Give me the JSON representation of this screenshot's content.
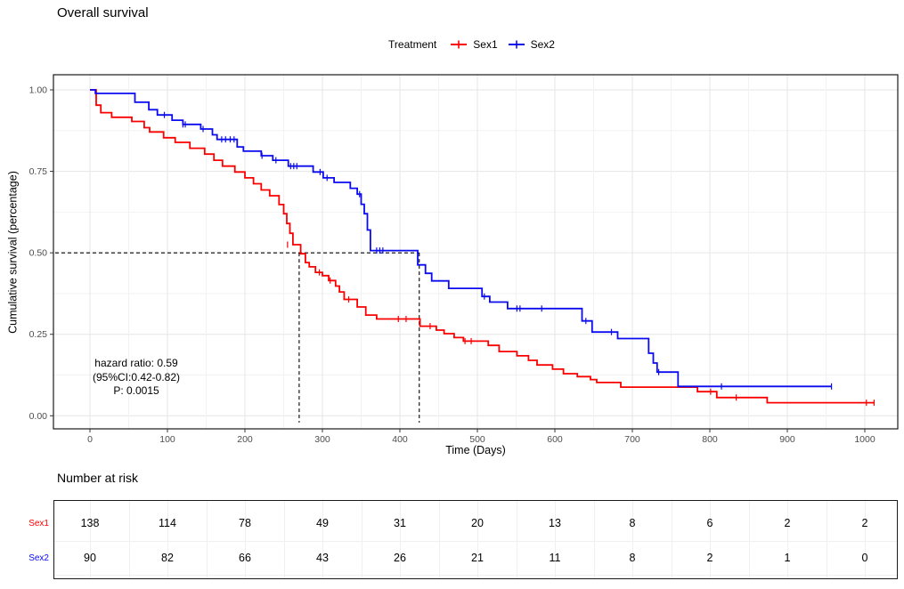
{
  "title": "Overall survival",
  "legend": {
    "title": "Treatment",
    "items": [
      {
        "label": "Sex1",
        "color": "#fa0000"
      },
      {
        "label": "Sex2",
        "color": "#0b0bf0"
      }
    ]
  },
  "annotation": {
    "lines": [
      "hazard ratio: 0.59",
      "(95%CI:0.42-0.82)",
      "P: 0.0015"
    ]
  },
  "chart_data": {
    "type": "line",
    "subtype": "kaplan-meier-step",
    "title": "Overall survival",
    "xlabel": "Time (Days)",
    "ylabel": "Cumulative survival (percentage)",
    "xlim": [
      0,
      1042
    ],
    "ylim": [
      0,
      1.0
    ],
    "xticks": [
      {
        "v": 0,
        "label": "0"
      },
      {
        "v": 100,
        "label": "100"
      },
      {
        "v": 200,
        "label": "200"
      },
      {
        "v": 300,
        "label": "300"
      },
      {
        "v": 400,
        "label": "400"
      },
      {
        "v": 500,
        "label": "500"
      },
      {
        "v": 600,
        "label": "600"
      },
      {
        "v": 700,
        "label": "700"
      },
      {
        "v": 800,
        "label": "800"
      },
      {
        "v": 900,
        "label": "900"
      },
      {
        "v": 1000,
        "label": "1000"
      }
    ],
    "yticks": [
      {
        "v": 0,
        "label": "0.00"
      },
      {
        "v": 0.25,
        "label": "0.25"
      },
      {
        "v": 0.5,
        "label": "0.50"
      },
      {
        "v": 0.75,
        "label": "0.75"
      },
      {
        "v": 1.0,
        "label": "1.00"
      }
    ],
    "grid": {
      "x_minor_step_days": 50,
      "y_minor_step": 0.125
    },
    "legend_position": "top",
    "median_survival": {
      "level": 0.5,
      "times": [
        270,
        425
      ]
    },
    "series": [
      {
        "name": "Sex1",
        "color": "#fa0000",
        "steps": [
          [
            0,
            1.0
          ],
          [
            8,
            0.953
          ],
          [
            14,
            0.93
          ],
          [
            28,
            0.916
          ],
          [
            54,
            0.903
          ],
          [
            70,
            0.884
          ],
          [
            77,
            0.871
          ],
          [
            95,
            0.853
          ],
          [
            110,
            0.839
          ],
          [
            129,
            0.821
          ],
          [
            148,
            0.803
          ],
          [
            160,
            0.784
          ],
          [
            171,
            0.766
          ],
          [
            187,
            0.748
          ],
          [
            200,
            0.73
          ],
          [
            211,
            0.712
          ],
          [
            221,
            0.693
          ],
          [
            232,
            0.675
          ],
          [
            244,
            0.648
          ],
          [
            250,
            0.62
          ],
          [
            254,
            0.59
          ],
          [
            258,
            0.56
          ],
          [
            262,
            0.525
          ],
          [
            272,
            0.497
          ],
          [
            278,
            0.47
          ],
          [
            283,
            0.457
          ],
          [
            291,
            0.44
          ],
          [
            300,
            0.43
          ],
          [
            308,
            0.415
          ],
          [
            317,
            0.398
          ],
          [
            322,
            0.38
          ],
          [
            328,
            0.357
          ],
          [
            345,
            0.334
          ],
          [
            356,
            0.309
          ],
          [
            370,
            0.297
          ],
          [
            426,
            0.275
          ],
          [
            447,
            0.263
          ],
          [
            457,
            0.252
          ],
          [
            470,
            0.24
          ],
          [
            482,
            0.229
          ],
          [
            514,
            0.216
          ],
          [
            528,
            0.197
          ],
          [
            551,
            0.184
          ],
          [
            566,
            0.17
          ],
          [
            577,
            0.156
          ],
          [
            597,
            0.143
          ],
          [
            611,
            0.129
          ],
          [
            629,
            0.12
          ],
          [
            646,
            0.111
          ],
          [
            654,
            0.102
          ],
          [
            685,
            0.088
          ],
          [
            784,
            0.074
          ],
          [
            809,
            0.056
          ],
          [
            874,
            0.04
          ],
          [
            1012,
            0.04
          ]
        ],
        "censors": [
          [
            255,
            0.525
          ],
          [
            296,
            0.44
          ],
          [
            310,
            0.415
          ],
          [
            334,
            0.357
          ],
          [
            398,
            0.297
          ],
          [
            408,
            0.297
          ],
          [
            439,
            0.275
          ],
          [
            484,
            0.229
          ],
          [
            492,
            0.229
          ],
          [
            801,
            0.074
          ],
          [
            834,
            0.056
          ],
          [
            1002,
            0.04
          ],
          [
            1012,
            0.04
          ]
        ]
      },
      {
        "name": "Sex2",
        "color": "#0b0bf0",
        "steps": [
          [
            0,
            1.0
          ],
          [
            7,
            0.989
          ],
          [
            58,
            0.962
          ],
          [
            76,
            0.939
          ],
          [
            87,
            0.923
          ],
          [
            106,
            0.907
          ],
          [
            120,
            0.894
          ],
          [
            143,
            0.88
          ],
          [
            158,
            0.862
          ],
          [
            164,
            0.848
          ],
          [
            190,
            0.825
          ],
          [
            198,
            0.812
          ],
          [
            221,
            0.798
          ],
          [
            236,
            0.784
          ],
          [
            256,
            0.766
          ],
          [
            288,
            0.748
          ],
          [
            301,
            0.73
          ],
          [
            315,
            0.716
          ],
          [
            336,
            0.698
          ],
          [
            345,
            0.68
          ],
          [
            350,
            0.649
          ],
          [
            354,
            0.62
          ],
          [
            358,
            0.57
          ],
          [
            362,
            0.507
          ],
          [
            423,
            0.463
          ],
          [
            433,
            0.437
          ],
          [
            441,
            0.414
          ],
          [
            463,
            0.391
          ],
          [
            506,
            0.366
          ],
          [
            516,
            0.349
          ],
          [
            539,
            0.329
          ],
          [
            635,
            0.291
          ],
          [
            648,
            0.257
          ],
          [
            681,
            0.237
          ],
          [
            721,
            0.192
          ],
          [
            727,
            0.162
          ],
          [
            732,
            0.134
          ],
          [
            759,
            0.09
          ],
          [
            957,
            0.09
          ]
        ],
        "censors": [
          [
            96,
            0.923
          ],
          [
            120,
            0.894
          ],
          [
            123,
            0.894
          ],
          [
            146,
            0.88
          ],
          [
            170,
            0.848
          ],
          [
            175,
            0.848
          ],
          [
            181,
            0.848
          ],
          [
            186,
            0.848
          ],
          [
            222,
            0.798
          ],
          [
            240,
            0.784
          ],
          [
            259,
            0.766
          ],
          [
            263,
            0.766
          ],
          [
            267,
            0.766
          ],
          [
            297,
            0.748
          ],
          [
            306,
            0.73
          ],
          [
            348,
            0.68
          ],
          [
            370,
            0.507
          ],
          [
            374,
            0.507
          ],
          [
            378,
            0.507
          ],
          [
            509,
            0.366
          ],
          [
            551,
            0.329
          ],
          [
            555,
            0.329
          ],
          [
            583,
            0.329
          ],
          [
            640,
            0.291
          ],
          [
            673,
            0.257
          ],
          [
            734,
            0.134
          ],
          [
            815,
            0.09
          ],
          [
            957,
            0.09
          ]
        ]
      }
    ]
  },
  "risk_table": {
    "heading": "Number at risk",
    "timepoints": [
      0,
      100,
      200,
      300,
      400,
      500,
      600,
      700,
      800,
      900,
      1000
    ],
    "rows": [
      {
        "label": "Sex1",
        "color": "#fa0000",
        "counts": [
          138,
          114,
          78,
          49,
          31,
          20,
          13,
          8,
          6,
          2,
          2
        ]
      },
      {
        "label": "Sex2",
        "color": "#0b0bf0",
        "counts": [
          90,
          82,
          66,
          43,
          26,
          21,
          11,
          8,
          2,
          1,
          0
        ]
      }
    ]
  },
  "colors": {
    "grid_major": "#e6e6e6",
    "grid_minor": "#f2f2f2",
    "panel_border": "#1a1a1a",
    "tick_text": "#4d4d4d",
    "median_dash": "#000000"
  }
}
